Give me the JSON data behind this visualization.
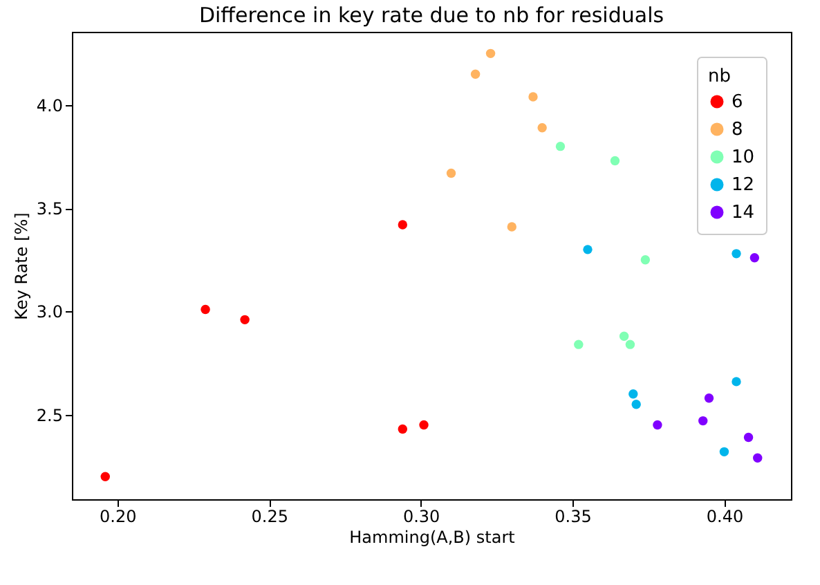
{
  "chart_data": {
    "type": "scatter",
    "title": "Difference in key rate due to nb for residuals",
    "xlabel": "Hamming(A,B) start",
    "ylabel": "Key Rate [%]",
    "legend_title": "nb",
    "legend": "top right",
    "marker": "circle",
    "grid": false,
    "xlim": [
      0.185,
      0.422
    ],
    "xticks": [
      {
        "value": 0.2,
        "label": "0.20"
      },
      {
        "value": 0.25,
        "label": "0.25"
      },
      {
        "value": 0.3,
        "label": "0.30"
      },
      {
        "value": 0.35,
        "label": "0.35"
      },
      {
        "value": 0.4,
        "label": "0.40"
      }
    ],
    "ylim": [
      2.09,
      4.355
    ],
    "yticks": [
      {
        "value": 2.5,
        "label": "2.5"
      },
      {
        "value": 3,
        "label": "3.0"
      },
      {
        "value": 3.5,
        "label": "3.5"
      },
      {
        "value": 4,
        "label": "4.0"
      }
    ],
    "series": [
      {
        "name": "6",
        "color": "#ff0000",
        "x": [
          0.196,
          0.229,
          0.242,
          0.294,
          0.294,
          0.301
        ],
        "values": [
          2.2,
          3.01,
          2.96,
          3.42,
          2.43,
          2.45
        ]
      },
      {
        "name": "8",
        "color": "#ffb360",
        "x": [
          0.323,
          0.318,
          0.337,
          0.34,
          0.31,
          0.33
        ],
        "values": [
          4.25,
          4.15,
          4.04,
          3.89,
          3.67,
          3.41
        ]
      },
      {
        "name": "10",
        "color": "#80ffb4",
        "x": [
          0.346,
          0.364,
          0.374,
          0.367,
          0.369,
          0.352
        ],
        "values": [
          3.8,
          3.73,
          3.25,
          2.88,
          2.84,
          2.84
        ]
      },
      {
        "name": "12",
        "color": "#00b5eb",
        "x": [
          0.355,
          0.404,
          0.37,
          0.371,
          0.404,
          0.4
        ],
        "values": [
          3.3,
          3.28,
          2.6,
          2.55,
          2.66,
          2.32
        ]
      },
      {
        "name": "14",
        "color": "#8000ff",
        "x": [
          0.41,
          0.395,
          0.393,
          0.378,
          0.408,
          0.411
        ],
        "values": [
          3.26,
          2.58,
          2.47,
          2.45,
          2.39,
          2.29
        ]
      }
    ]
  }
}
